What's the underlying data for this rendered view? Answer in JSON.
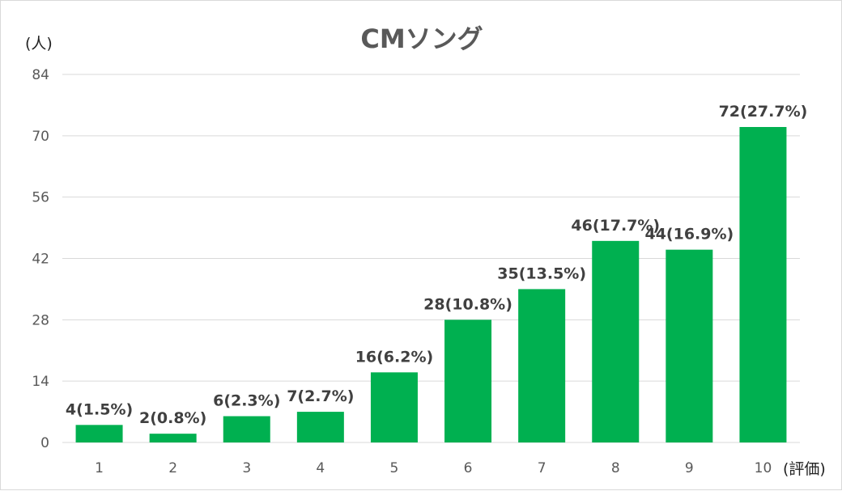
{
  "chart_data": {
    "type": "bar",
    "title": "CMソング",
    "ylabel": "(人)",
    "xlabel": "(評価)",
    "categories": [
      "1",
      "2",
      "3",
      "4",
      "5",
      "6",
      "7",
      "8",
      "9",
      "10"
    ],
    "values": [
      4,
      2,
      6,
      7,
      16,
      28,
      35,
      46,
      44,
      72
    ],
    "data_labels": [
      "4(1.5%)",
      "2(0.8%)",
      "6(2.3%)",
      "7(2.7%)",
      "16(6.2%)",
      "28(10.8%)",
      "35(13.5%)",
      "46(17.7%)",
      "44(16.9%)",
      "72(27.7%)"
    ],
    "yticks": [
      0,
      14,
      28,
      42,
      56,
      70,
      84
    ],
    "ylim": [
      0,
      84
    ],
    "grid": true,
    "legend": "none",
    "bar_color": "#00b050",
    "gridline_color": "#d9d9d9"
  }
}
